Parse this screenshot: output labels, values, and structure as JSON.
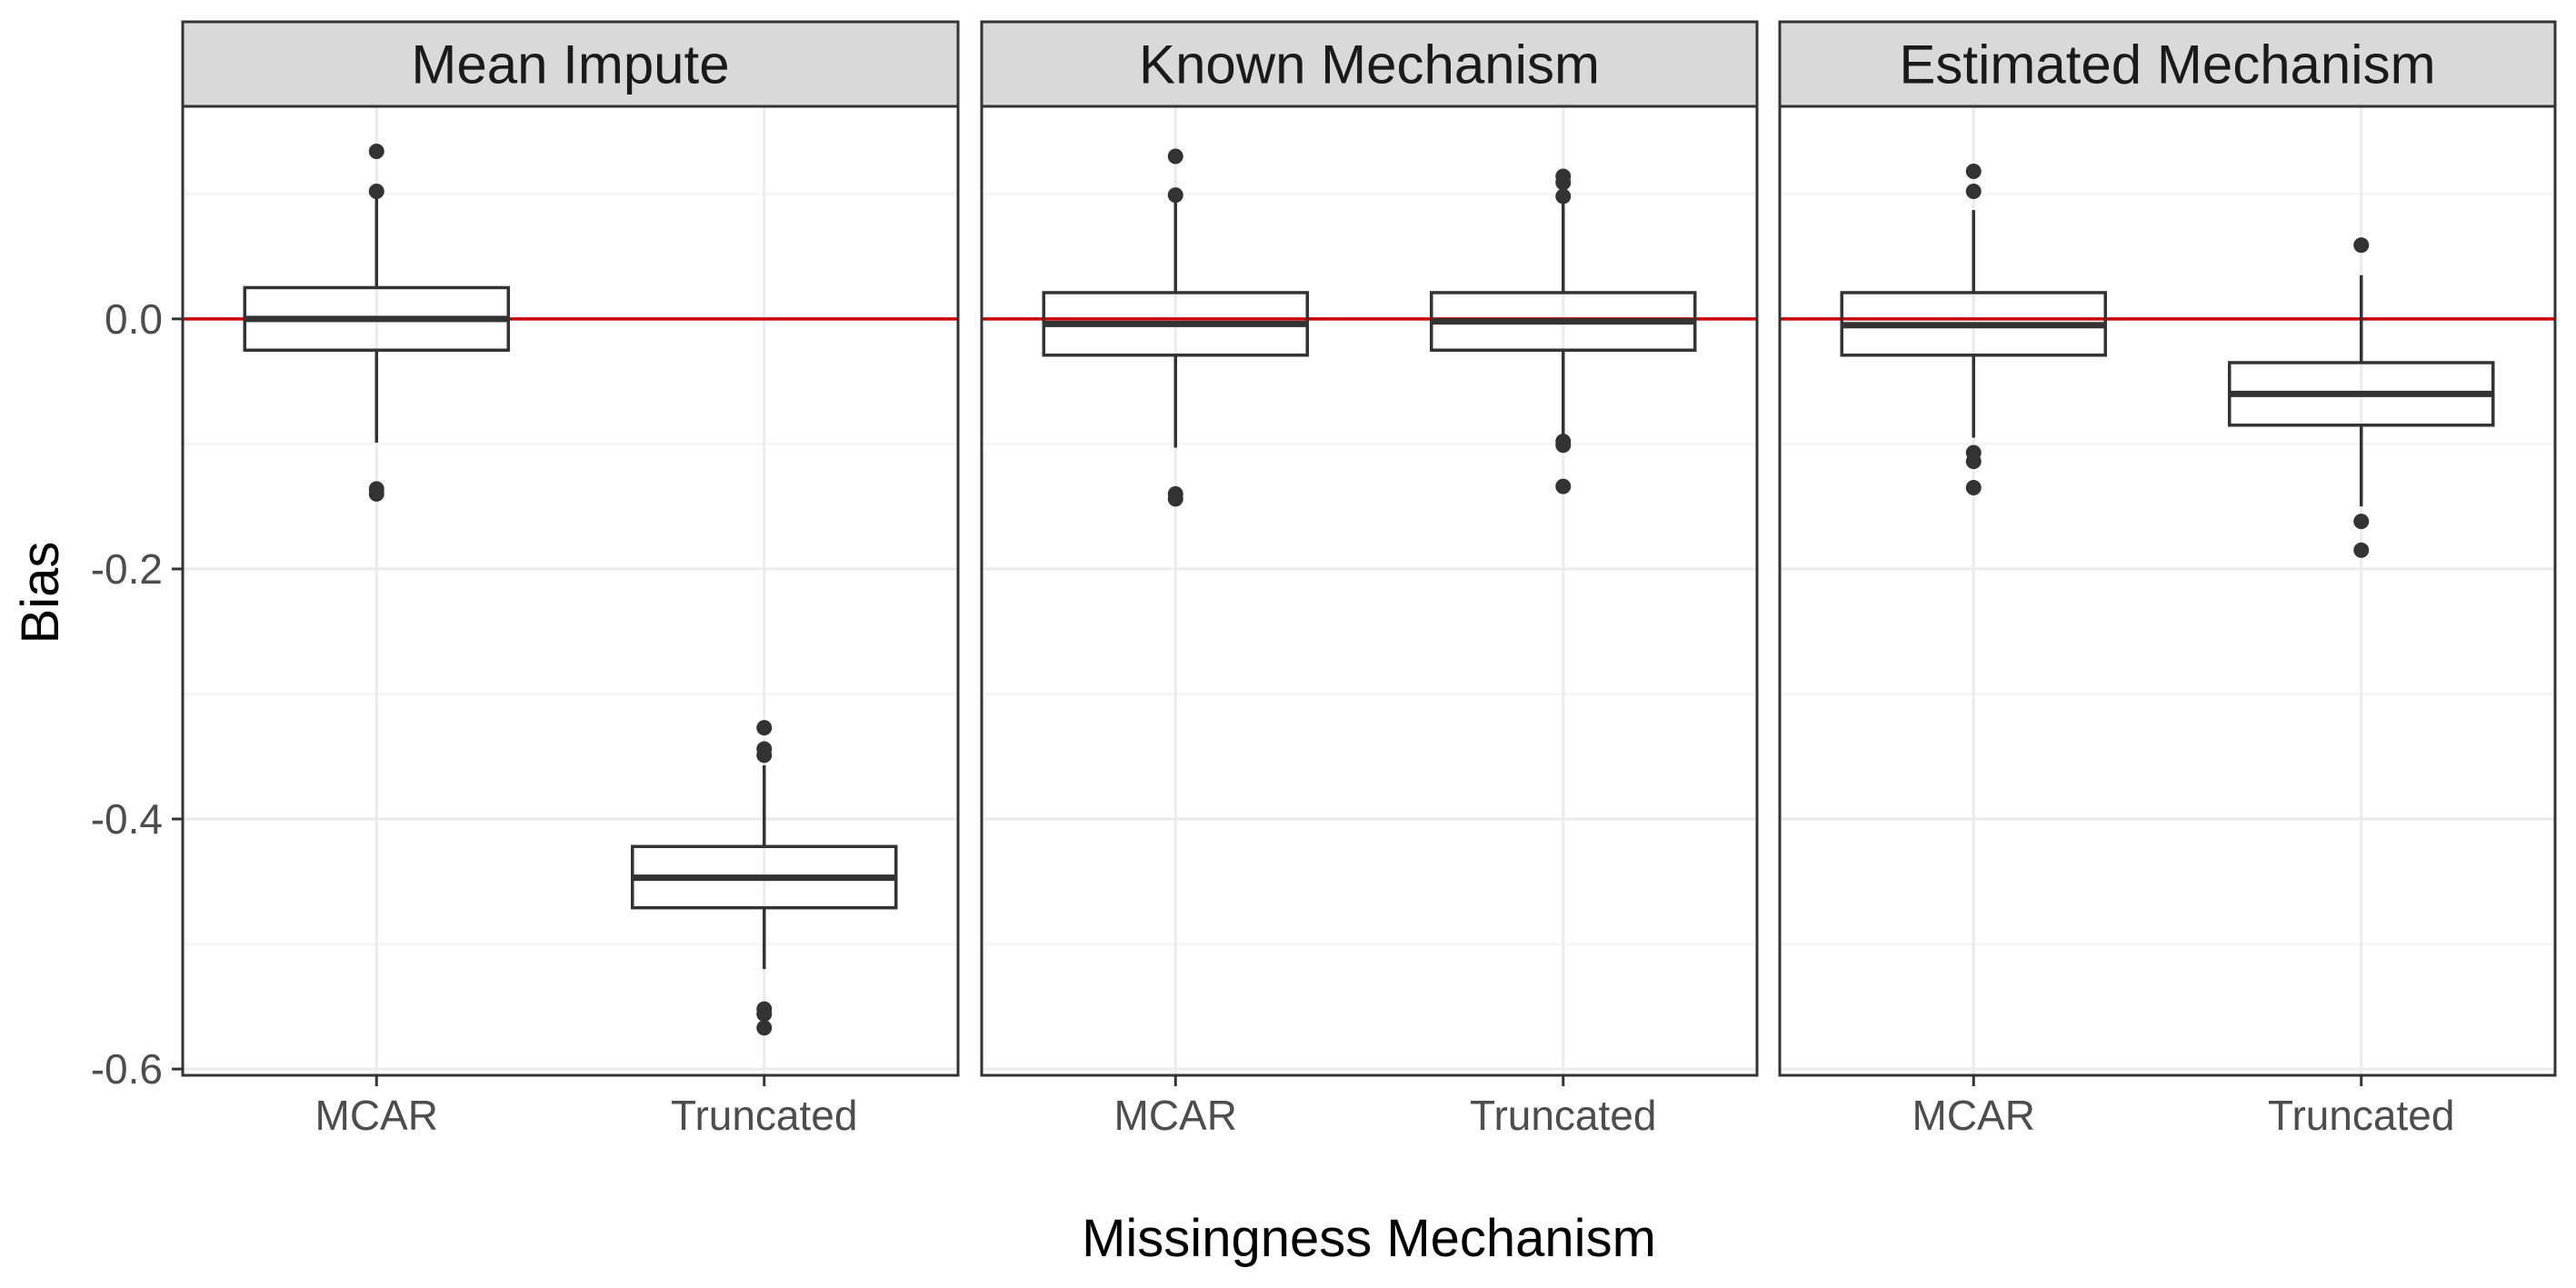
{
  "chart_data": {
    "type": "boxplot",
    "xlabel": "Missingness Mechanism",
    "ylabel": "Bias",
    "ylim": [
      -0.605,
      0.17
    ],
    "yticks": [
      0.0,
      -0.2,
      -0.4,
      -0.6
    ],
    "ytick_labels": [
      "0.0",
      "-0.2",
      "-0.4",
      "-0.6"
    ],
    "categories": [
      "MCAR",
      "Truncated"
    ],
    "reference_line": {
      "y": 0.0,
      "color": "#cc0000"
    },
    "grid": true,
    "panels": [
      {
        "title": "Mean Impute",
        "boxes": [
          {
            "category": "MCAR",
            "whisker_low": -0.099,
            "q1": -0.025,
            "median": 0.0,
            "q3": 0.025,
            "whisker_high": 0.1,
            "outliers": [
              0.134,
              0.102,
              -0.136,
              -0.14
            ]
          },
          {
            "category": "Truncated",
            "whisker_low": -0.52,
            "q1": -0.471,
            "median": -0.447,
            "q3": -0.422,
            "whisker_high": -0.357,
            "outliers": [
              -0.327,
              -0.344,
              -0.349,
              -0.552,
              -0.556,
              -0.567
            ]
          }
        ]
      },
      {
        "title": "Known Mechanism",
        "boxes": [
          {
            "category": "MCAR",
            "whisker_low": -0.103,
            "q1": -0.029,
            "median": -0.004,
            "q3": 0.021,
            "whisker_high": 0.097,
            "outliers": [
              0.13,
              0.099,
              -0.14,
              -0.144
            ]
          },
          {
            "category": "Truncated",
            "whisker_low": -0.095,
            "q1": -0.025,
            "median": -0.002,
            "q3": 0.021,
            "whisker_high": 0.092,
            "outliers": [
              0.114,
              0.109,
              0.098,
              -0.098,
              -0.101,
              -0.134
            ]
          }
        ]
      },
      {
        "title": "Estimated Mechanism",
        "boxes": [
          {
            "category": "MCAR",
            "whisker_low": -0.095,
            "q1": -0.029,
            "median": -0.005,
            "q3": 0.021,
            "whisker_high": 0.087,
            "outliers": [
              0.118,
              0.102,
              -0.107,
              -0.114,
              -0.135
            ]
          },
          {
            "category": "Truncated",
            "whisker_low": -0.15,
            "q1": -0.085,
            "median": -0.06,
            "q3": -0.035,
            "whisker_high": 0.035,
            "outliers": [
              0.059,
              -0.162,
              -0.185
            ]
          }
        ]
      }
    ]
  }
}
